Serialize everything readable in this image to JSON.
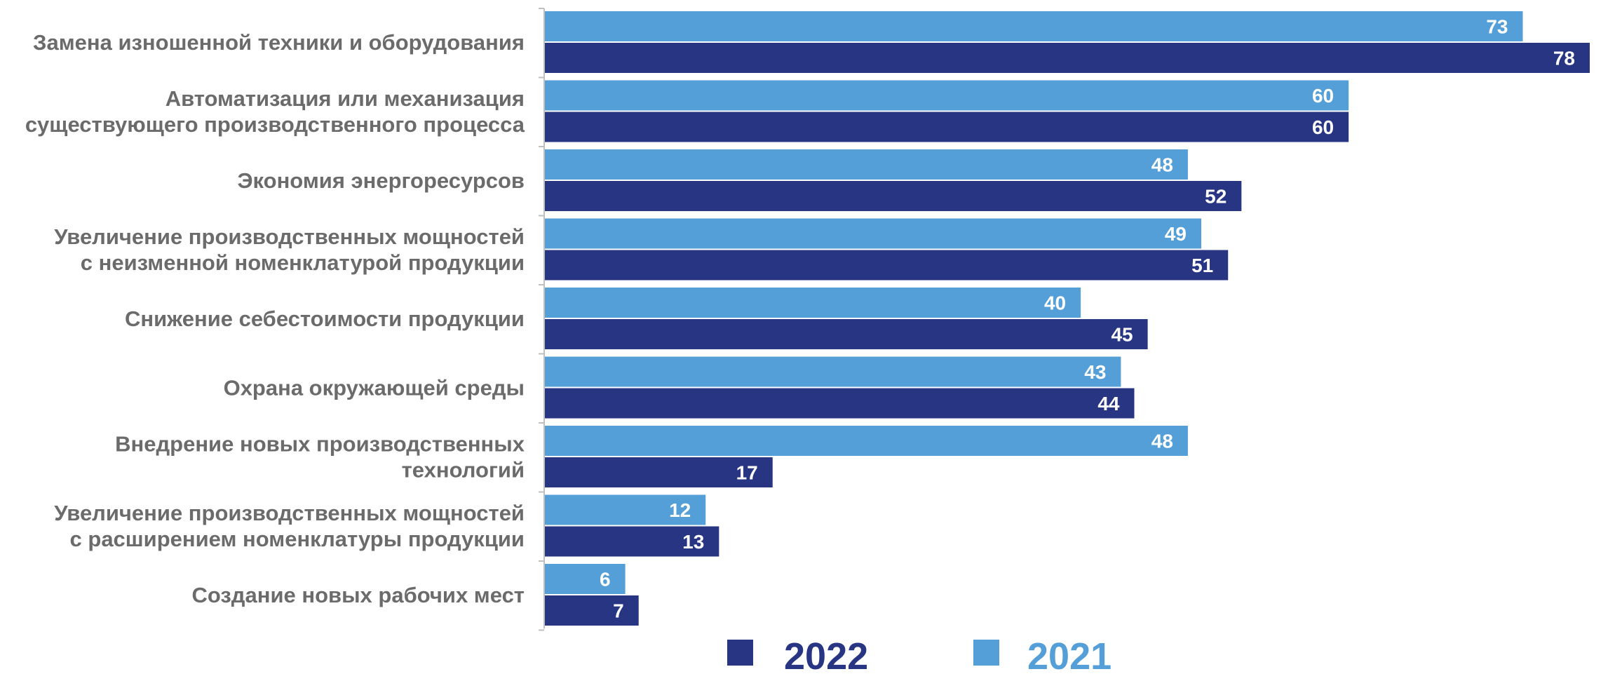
{
  "chart_data": {
    "type": "bar",
    "orientation": "horizontal",
    "categories": [
      [
        "Замена изношенной техники и оборудования"
      ],
      [
        "Автоматизация или механизация",
        "существующего производственного процесса"
      ],
      [
        "Экономия энергоресурсов"
      ],
      [
        "Увеличение производственных мощностей",
        "с неизменной номенклатурой продукции"
      ],
      [
        "Снижение себестоимости продукции"
      ],
      [
        "Охрана окружающей среды"
      ],
      [
        "Внедрение новых производственных",
        "технологий"
      ],
      [
        "Увеличение производственных мощностей",
        "с расширением номенклатуры продукции"
      ],
      [
        "Создание новых рабочих мест"
      ]
    ],
    "series": [
      {
        "name": "2021",
        "color": "#559fd8",
        "values": [
          73,
          60,
          48,
          49,
          40,
          43,
          48,
          12,
          6
        ]
      },
      {
        "name": "2022",
        "color": "#283583",
        "values": [
          78,
          60,
          52,
          51,
          45,
          44,
          17,
          13,
          7
        ]
      }
    ],
    "xlim": [
      0,
      78
    ],
    "grid": false,
    "legend_position": "bottom",
    "legend_order": [
      "2022",
      "2021"
    ],
    "label_color": "#6b6b6b",
    "axis_color": "#bfbfbf"
  }
}
